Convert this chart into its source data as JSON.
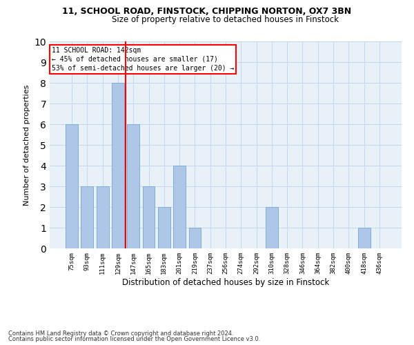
{
  "title1": "11, SCHOOL ROAD, FINSTOCK, CHIPPING NORTON, OX7 3BN",
  "title2": "Size of property relative to detached houses in Finstock",
  "xlabel": "Distribution of detached houses by size in Finstock",
  "ylabel": "Number of detached properties",
  "categories": [
    "75sqm",
    "93sqm",
    "111sqm",
    "129sqm",
    "147sqm",
    "165sqm",
    "183sqm",
    "201sqm",
    "219sqm",
    "237sqm",
    "256sqm",
    "274sqm",
    "292sqm",
    "310sqm",
    "328sqm",
    "346sqm",
    "364sqm",
    "382sqm",
    "400sqm",
    "418sqm",
    "436sqm"
  ],
  "values": [
    6,
    3,
    3,
    8,
    6,
    3,
    2,
    4,
    1,
    0,
    0,
    0,
    0,
    2,
    0,
    0,
    0,
    0,
    0,
    1,
    0
  ],
  "bar_color": "#aec6e8",
  "bar_edge_color": "#7fadd4",
  "grid_color": "#c8d8ec",
  "background_color": "#e8f0f8",
  "annotation_text1": "11 SCHOOL ROAD: 142sqm",
  "annotation_text2": "← 45% of detached houses are smaller (17)",
  "annotation_text3": "53% of semi-detached houses are larger (20) →",
  "annotation_box_color": "white",
  "annotation_edge_color": "red",
  "red_line_color": "red",
  "red_line_x": 3.5,
  "footer1": "Contains HM Land Registry data © Crown copyright and database right 2024.",
  "footer2": "Contains public sector information licensed under the Open Government Licence v3.0.",
  "ylim": [
    0,
    10
  ],
  "yticks": [
    0,
    1,
    2,
    3,
    4,
    5,
    6,
    7,
    8,
    9,
    10
  ]
}
